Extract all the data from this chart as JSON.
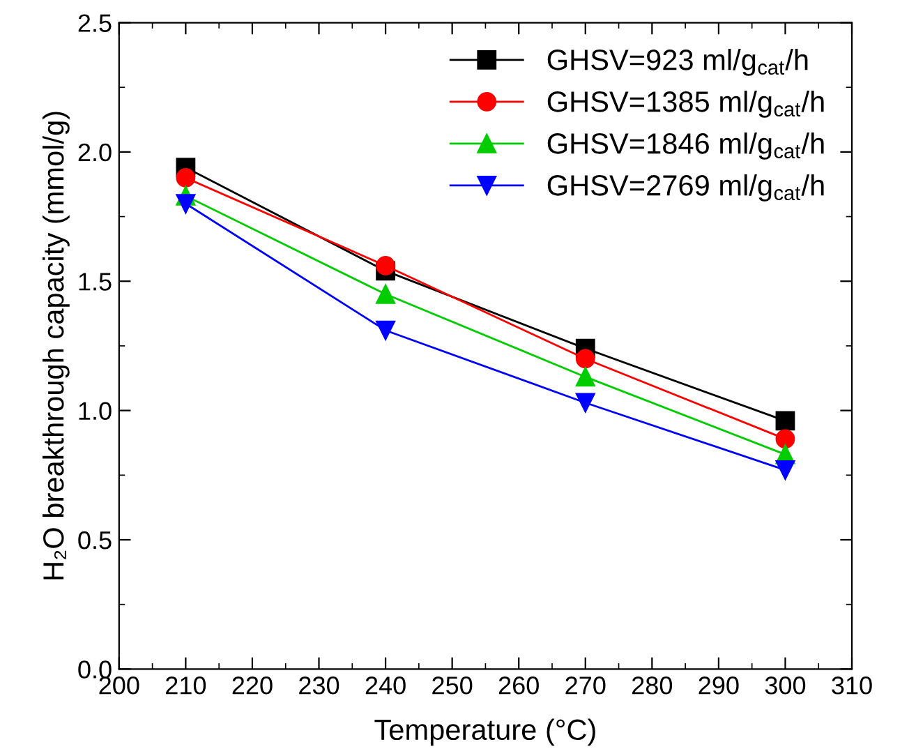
{
  "chart_data": {
    "type": "line",
    "xlabel": "Temperature (°C)",
    "ylabel": "H₂O breakthrough capacity (mmol/g)",
    "x": [
      210,
      240,
      270,
      300
    ],
    "series": [
      {
        "name": "GHSV=923 ml/g$_{cat}$/h",
        "color": "#000000",
        "marker": "square",
        "values": [
          1.94,
          1.54,
          1.24,
          0.96
        ]
      },
      {
        "name": "GHSV=1385 ml/g$_{cat}$/h",
        "color": "#ff0000",
        "marker": "circle",
        "values": [
          1.9,
          1.56,
          1.2,
          0.89
        ]
      },
      {
        "name": "GHSV=1846 ml/g$_{cat}$/h",
        "color": "#00cc00",
        "marker": "triangle",
        "values": [
          1.83,
          1.45,
          1.13,
          0.83
        ]
      },
      {
        "name": "GHSV=2769 ml/g$_{cat}$/h",
        "color": "#0000ff",
        "marker": "triangle_down",
        "values": [
          1.8,
          1.31,
          1.03,
          0.77
        ]
      }
    ],
    "xlim": [
      200,
      310
    ],
    "xticks": [
      200,
      210,
      220,
      230,
      240,
      250,
      260,
      270,
      280,
      290,
      300,
      310
    ],
    "ylim": [
      0,
      2.5
    ],
    "yticks": [
      {
        "value": 0,
        "label": "0.0"
      },
      0.5,
      {
        "value": 1,
        "label": "1.0"
      },
      1.5,
      {
        "value": 2,
        "label": "2.0"
      },
      2.5
    ],
    "grid": false,
    "legend": "top right"
  }
}
